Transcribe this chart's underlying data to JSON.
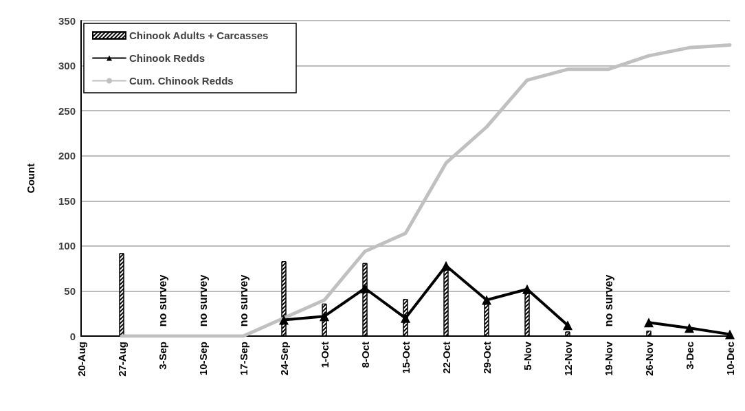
{
  "chart_data": {
    "type": "bar",
    "ylabel": "Count",
    "categories": [
      "20-Aug",
      "27-Aug",
      "3-Sep",
      "10-Sep",
      "17-Sep",
      "24-Sep",
      "1-Oct",
      "8-Oct",
      "15-Oct",
      "22-Oct",
      "29-Oct",
      "5-Nov",
      "12-Nov",
      "19-Nov",
      "26-Nov",
      "3-Dec",
      "10-Dec"
    ],
    "series": [
      {
        "name": "Chinook Adults + Carcasses",
        "color": "#ffffff",
        "values": [
          null,
          92,
          null,
          null,
          null,
          83,
          36,
          81,
          41,
          76,
          37,
          50,
          5,
          null,
          6,
          null,
          null
        ]
      },
      {
        "name": "Chinook Redds",
        "type": "line",
        "color": "#000000",
        "marker": "triangle",
        "values": [
          null,
          null,
          null,
          null,
          null,
          18,
          22,
          53,
          20,
          78,
          40,
          52,
          12,
          null,
          15,
          9,
          2
        ]
      },
      {
        "name": "Cum. Chinook Redds",
        "type": "line",
        "color": "#c0c0c0",
        "marker": "none",
        "values": [
          null,
          0,
          0,
          0,
          0,
          20,
          40,
          94,
          114,
          192,
          232,
          284,
          296,
          296,
          311,
          320,
          323
        ]
      }
    ],
    "annotations": [
      "no survey",
      "no survey",
      "no survey",
      "no survey"
    ],
    "ylim": [
      0,
      350
    ],
    "yticks": [
      0,
      50,
      100,
      150,
      200,
      250,
      300,
      350
    ],
    "grid": "y",
    "legend": "top left"
  }
}
